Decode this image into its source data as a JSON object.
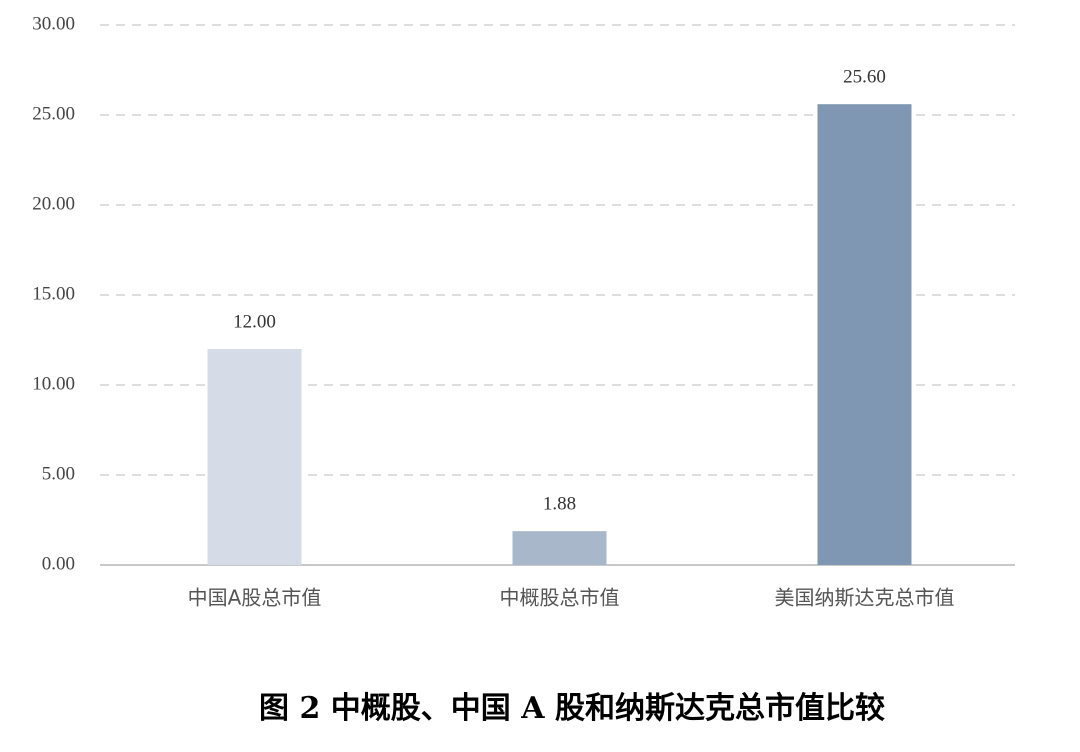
{
  "chart_data": {
    "type": "bar",
    "title": "图 2 中概股、中国 A 股和纳斯达克总市值比较",
    "categories": [
      "中国A股总市值",
      "中概股总市值",
      "美国纳斯达克总市值"
    ],
    "values": [
      12,
      1.88,
      25.6
    ],
    "value_labels": [
      "12.00",
      "1.88",
      "25.60"
    ],
    "colors": [
      "#d5dce7",
      "#a9b7ca",
      "#7f97b2"
    ],
    "ylim": [
      0,
      30
    ],
    "yticks": [
      {
        "value": 0,
        "label": "0.00"
      },
      {
        "value": 5,
        "label": "5.00"
      },
      {
        "value": 10,
        "label": "10.00"
      },
      {
        "value": 15,
        "label": "15.00"
      },
      {
        "value": 20,
        "label": "20.00"
      },
      {
        "value": 25,
        "label": "25.00"
      },
      {
        "value": 30,
        "label": "30.00"
      }
    ],
    "grid": true
  }
}
